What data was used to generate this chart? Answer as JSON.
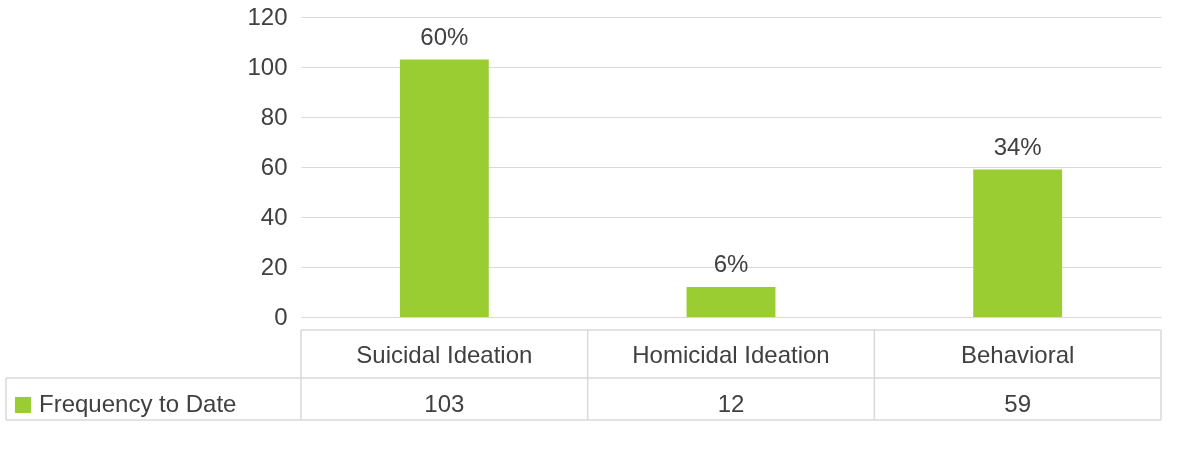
{
  "chart_data": {
    "type": "bar",
    "categories": [
      "Suicidal Ideation",
      "Homicidal Ideation",
      "Behavioral"
    ],
    "series": [
      {
        "name": "Frequency to Date",
        "color": "#9acd32",
        "values": [
          103,
          12,
          59
        ]
      }
    ],
    "annotations": [
      {
        "text": "60%",
        "x": "Suicidal Ideation",
        "y": 103
      },
      {
        "text": "6%",
        "x": "Homicidal Ideation",
        "y": 12
      },
      {
        "text": "34%",
        "x": "Behavioral",
        "y": 59
      }
    ],
    "ylim": [
      0,
      120
    ],
    "yticks": [
      0,
      20,
      40,
      60,
      80,
      100,
      120
    ],
    "grid": "y",
    "legend": "bottom left",
    "data_labels": true
  }
}
